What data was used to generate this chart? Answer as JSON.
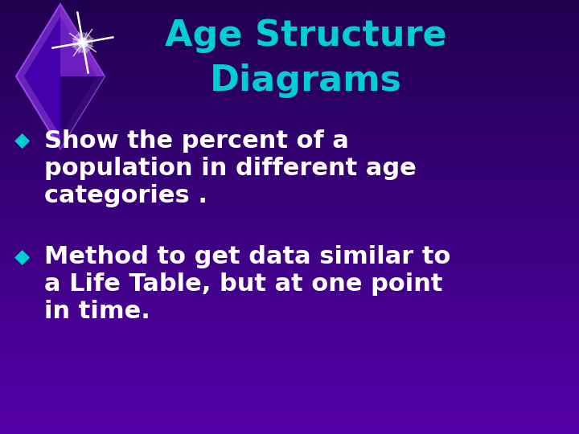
{
  "title_line1": "Age Structure",
  "title_line2": "Diagrams",
  "title_color": "#00CED1",
  "bullet_color": "#00CDCD",
  "text_color": "#FFFFFF",
  "bg_color_tl": "#200040",
  "bg_color_tr": "#3a0070",
  "bg_color_bl": "#4a0090",
  "bg_color_br": "#5500aa",
  "bullet1_marker": "◆",
  "bullet1_text_line1": "Show the percent of a",
  "bullet1_text_line2": "population in different age",
  "bullet1_text_line3": "categories .",
  "bullet2_marker": "◆",
  "bullet2_text_line1": "Method to get data similar to",
  "bullet2_text_line2": "a Life Table, but at one point",
  "bullet2_text_line3": "in time.",
  "title_fontsize": 32,
  "body_fontsize": 22,
  "marker_fontsize": 18,
  "diamond_color_outer": "#7722cc",
  "diamond_color_mid": "#5500bb",
  "diamond_color_inner": "#330099",
  "diamond_color_dark": "#220077"
}
